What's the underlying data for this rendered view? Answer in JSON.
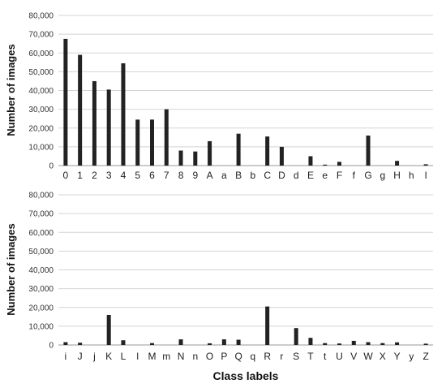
{
  "chart_data": [
    {
      "type": "bar",
      "title": "",
      "xlabel": "",
      "ylabel": "Number of images",
      "ylim": [
        0,
        80000
      ],
      "yticks": [
        0,
        10000,
        20000,
        30000,
        40000,
        50000,
        60000,
        70000,
        80000
      ],
      "ytick_labels": [
        "0",
        "10,000",
        "20,000",
        "30,000",
        "40,000",
        "50,000",
        "60,000",
        "70,000",
        "80,000"
      ],
      "grid": true,
      "legend": "none",
      "bar_color": "#222222",
      "categories": [
        "0",
        "1",
        "2",
        "3",
        "4",
        "5",
        "6",
        "7",
        "8",
        "9",
        "A",
        "a",
        "B",
        "b",
        "C",
        "D",
        "d",
        "E",
        "e",
        "F",
        "f",
        "G",
        "g",
        "H",
        "h",
        "I"
      ],
      "values": [
        67500,
        59000,
        45000,
        40500,
        54500,
        24500,
        24500,
        30000,
        8000,
        7500,
        13000,
        0,
        17000,
        0,
        15500,
        10000,
        0,
        5000,
        500,
        2000,
        0,
        16000,
        0,
        2500,
        0,
        700
      ]
    },
    {
      "type": "bar",
      "title": "",
      "xlabel": "Class labels",
      "ylabel": "Number of images",
      "ylim": [
        0,
        80000
      ],
      "yticks": [
        0,
        10000,
        20000,
        30000,
        40000,
        50000,
        60000,
        70000,
        80000
      ],
      "ytick_labels": [
        "0",
        "10,000",
        "20,000",
        "30,000",
        "40,000",
        "50,000",
        "60,000",
        "70,000",
        "80,000"
      ],
      "grid": true,
      "legend": "none",
      "bar_color": "#222222",
      "categories": [
        "i",
        "J",
        "j",
        "K",
        "L",
        "l",
        "M",
        "m",
        "N",
        "n",
        "O",
        "P",
        "Q",
        "q",
        "R",
        "r",
        "S",
        "T",
        "t",
        "U",
        "V",
        "W",
        "X",
        "Y",
        "y",
        "Z"
      ],
      "values": [
        1500,
        1200,
        0,
        16000,
        2500,
        0,
        1000,
        0,
        3000,
        0,
        900,
        3000,
        2800,
        0,
        20500,
        0,
        9000,
        3800,
        1000,
        800,
        2200,
        1500,
        1000,
        1400,
        0,
        700
      ]
    }
  ]
}
